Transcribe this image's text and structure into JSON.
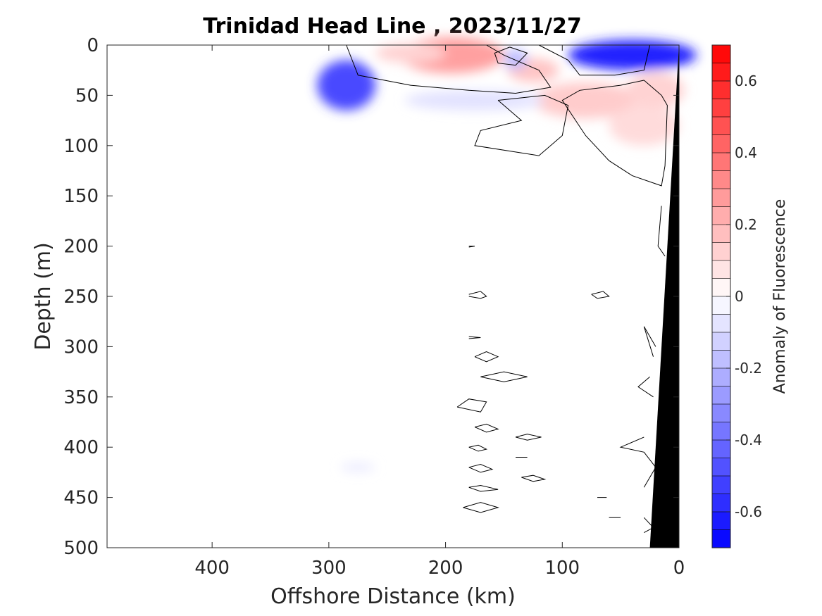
{
  "chart_data": {
    "type": "heatmap",
    "title": "Trinidad Head Line , 2023/11/27",
    "xlabel": "Offshore Distance (km)",
    "ylabel": "Depth (m)",
    "colorbar_label": "Anomaly of Fluorescence",
    "xlim": [
      490,
      0
    ],
    "ylim": [
      0,
      500
    ],
    "x_reversed": true,
    "y_reversed": true,
    "x_ticks": [
      400,
      300,
      200,
      100,
      0
    ],
    "x_tick_labels": [
      "400",
      "300",
      "200",
      "100",
      "0"
    ],
    "y_ticks": [
      0,
      50,
      100,
      150,
      200,
      250,
      300,
      350,
      400,
      450,
      500
    ],
    "y_tick_labels": [
      "0",
      "50",
      "100",
      "150",
      "200",
      "250",
      "300",
      "350",
      "400",
      "450",
      "500"
    ],
    "clim": [
      -0.7,
      0.7
    ],
    "colorbar_ticks": [
      0.6,
      0.4,
      0.2,
      0,
      -0.2,
      -0.4,
      -0.6
    ],
    "colorbar_tick_labels": [
      "0.6",
      "0.4",
      "0.2",
      "0",
      "-0.2",
      "-0.4",
      "-0.6"
    ],
    "colorbar_levels": 28,
    "colormap": {
      "negative": "#0000ff",
      "zero": "#ffffff",
      "positive": "#ff0000"
    },
    "data_extent_km": [
      290,
      0
    ],
    "anomaly_patches": [
      {
        "x": 195,
        "depth": 10,
        "value": 0.26,
        "rx": 45,
        "rdepth": 18
      },
      {
        "x": 230,
        "depth": 8,
        "value": 0.12,
        "rx": 30,
        "rdepth": 10
      },
      {
        "x": 125,
        "depth": 25,
        "value": 0.16,
        "rx": 22,
        "rdepth": 12
      },
      {
        "x": 140,
        "depth": 14,
        "value": -0.18,
        "rx": 10,
        "rdepth": 10
      },
      {
        "x": 40,
        "depth": 10,
        "value": -0.6,
        "rx": 55,
        "rdepth": 15
      },
      {
        "x": 285,
        "depth": 40,
        "value": -0.5,
        "rx": 25,
        "rdepth": 25
      },
      {
        "x": 80,
        "depth": 55,
        "value": 0.14,
        "rx": 45,
        "rdepth": 18
      },
      {
        "x": 20,
        "depth": 45,
        "value": 0.12,
        "rx": 25,
        "rdepth": 18
      },
      {
        "x": 30,
        "depth": 80,
        "value": 0.1,
        "rx": 30,
        "rdepth": 20
      },
      {
        "x": 175,
        "depth": 55,
        "value": -0.08,
        "rx": 60,
        "rdepth": 10
      },
      {
        "x": 275,
        "depth": 420,
        "value": -0.06,
        "rx": 15,
        "rdepth": 4
      }
    ],
    "zero_contours": [
      [
        [
          285,
          0
        ],
        [
          275,
          30
        ],
        [
          230,
          40
        ],
        [
          180,
          45
        ],
        [
          140,
          48
        ],
        [
          110,
          42
        ],
        [
          120,
          25
        ],
        [
          150,
          10
        ],
        [
          165,
          0
        ]
      ],
      [
        [
          145,
          2
        ],
        [
          130,
          8
        ],
        [
          140,
          20
        ],
        [
          155,
          18
        ],
        [
          158,
          8
        ],
        [
          145,
          2
        ]
      ],
      [
        [
          120,
          0
        ],
        [
          95,
          15
        ],
        [
          85,
          30
        ],
        [
          55,
          30
        ],
        [
          30,
          25
        ],
        [
          25,
          0
        ]
      ],
      [
        [
          30,
          35
        ],
        [
          50,
          40
        ],
        [
          85,
          45
        ],
        [
          100,
          55
        ],
        [
          80,
          90
        ],
        [
          60,
          115
        ],
        [
          40,
          130
        ],
        [
          15,
          140
        ],
        [
          12,
          120
        ],
        [
          10,
          60
        ],
        [
          15,
          50
        ],
        [
          30,
          35
        ]
      ],
      [
        [
          155,
          55
        ],
        [
          135,
          75
        ],
        [
          170,
          85
        ],
        [
          175,
          100
        ],
        [
          120,
          110
        ],
        [
          100,
          90
        ],
        [
          95,
          60
        ],
        [
          115,
          50
        ],
        [
          155,
          55
        ]
      ],
      [
        [
          180,
          200
        ],
        [
          175,
          200
        ],
        [
          180,
          201
        ]
      ],
      [
        [
          180,
          248
        ],
        [
          170,
          245
        ],
        [
          165,
          250
        ],
        [
          170,
          252
        ],
        [
          180,
          250
        ]
      ],
      [
        [
          75,
          248
        ],
        [
          65,
          245
        ],
        [
          60,
          250
        ],
        [
          70,
          252
        ],
        [
          75,
          248
        ]
      ],
      [
        [
          180,
          290
        ],
        [
          170,
          291
        ],
        [
          180,
          292
        ]
      ],
      [
        [
          175,
          310
        ],
        [
          165,
          305
        ],
        [
          155,
          310
        ],
        [
          165,
          315
        ],
        [
          175,
          310
        ]
      ],
      [
        [
          170,
          330
        ],
        [
          150,
          325
        ],
        [
          130,
          330
        ],
        [
          150,
          335
        ],
        [
          170,
          330
        ]
      ],
      [
        [
          190,
          360
        ],
        [
          180,
          352
        ],
        [
          165,
          355
        ],
        [
          170,
          365
        ],
        [
          190,
          360
        ]
      ],
      [
        [
          175,
          380
        ],
        [
          165,
          377
        ],
        [
          155,
          382
        ],
        [
          165,
          385
        ],
        [
          175,
          380
        ]
      ],
      [
        [
          140,
          390
        ],
        [
          130,
          387
        ],
        [
          118,
          390
        ],
        [
          130,
          393
        ],
        [
          140,
          390
        ]
      ],
      [
        [
          180,
          400
        ],
        [
          172,
          398
        ],
        [
          165,
          402
        ],
        [
          172,
          404
        ],
        [
          180,
          400
        ]
      ],
      [
        [
          140,
          410
        ],
        [
          130,
          410
        ]
      ],
      [
        [
          180,
          420
        ],
        [
          170,
          417
        ],
        [
          160,
          422
        ],
        [
          170,
          425
        ],
        [
          180,
          420
        ]
      ],
      [
        [
          135,
          430
        ],
        [
          125,
          428
        ],
        [
          115,
          432
        ],
        [
          125,
          434
        ],
        [
          135,
          430
        ]
      ],
      [
        [
          180,
          440
        ],
        [
          170,
          438
        ],
        [
          155,
          442
        ],
        [
          170,
          444
        ],
        [
          180,
          440
        ]
      ],
      [
        [
          185,
          460
        ],
        [
          170,
          455
        ],
        [
          155,
          460
        ],
        [
          170,
          465
        ],
        [
          185,
          460
        ]
      ],
      [
        [
          60,
          470
        ],
        [
          50,
          470
        ]
      ],
      [
        [
          70,
          450
        ],
        [
          62,
          450
        ]
      ],
      [
        [
          15,
          160
        ],
        [
          18,
          200
        ],
        [
          12,
          210
        ]
      ],
      [
        [
          20,
          300
        ],
        [
          30,
          280
        ],
        [
          22,
          310
        ]
      ],
      [
        [
          25,
          330
        ],
        [
          35,
          340
        ],
        [
          22,
          350
        ]
      ],
      [
        [
          30,
          390
        ],
        [
          50,
          400
        ],
        [
          30,
          405
        ],
        [
          20,
          420
        ],
        [
          30,
          440
        ]
      ],
      [
        [
          30,
          470
        ],
        [
          22,
          480
        ],
        [
          30,
          485
        ]
      ]
    ],
    "bathymetry_polygon": [
      [
        0,
        0
      ],
      [
        25,
        500
      ],
      [
        0,
        500
      ]
    ]
  }
}
